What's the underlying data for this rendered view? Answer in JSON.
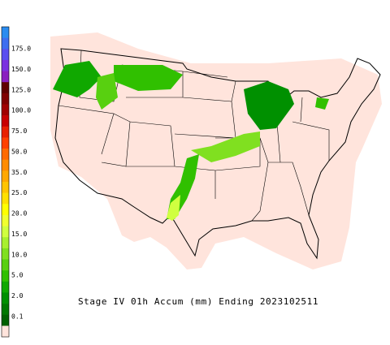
{
  "map": {
    "title": "Stage IV 01h Accum (mm) Ending 2023102511",
    "legend": {
      "labels": [
        "175.0",
        "150.0",
        "125.0",
        "100.0",
        "75.0",
        "50.0",
        "35.0",
        "25.0",
        "20.0",
        "15.0",
        "10.0",
        "5.0",
        "2.0",
        "0.1"
      ],
      "colors": [
        "#2a8cf0",
        "#3e6ef0",
        "#5a4ff0",
        "#7a30e0",
        "#8a20c0",
        "#600000",
        "#800000",
        "#a00000",
        "#c80000",
        "#e82000",
        "#ff4000",
        "#ff6a00",
        "#ff8c00",
        "#ffa800",
        "#ffc400",
        "#ffe000",
        "#ffff00",
        "#f0ff30",
        "#d0ff40",
        "#a8f030",
        "#80e020",
        "#58d010",
        "#30c000",
        "#10a800",
        "#009000",
        "#007800",
        "#006000",
        "#ffe4dc"
      ]
    }
  }
}
